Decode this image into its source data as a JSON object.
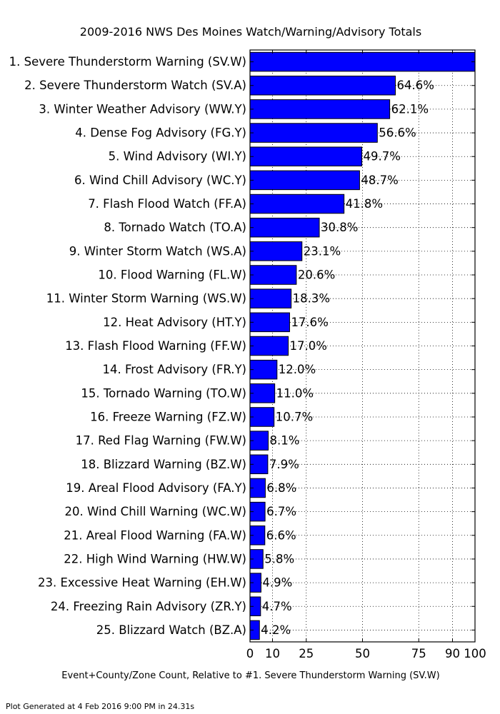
{
  "chart_data": {
    "type": "bar",
    "orientation": "horizontal",
    "title": "2009-2016 NWS Des Moines Watch/Warning/Advisory Totals",
    "xlabel": "Event+County/Zone Count, Relative to #1. Severe Thunderstorm Warning (SV.W)",
    "ylabel": "",
    "xlim": [
      0,
      100
    ],
    "xticks": [
      0,
      10,
      25,
      50,
      75,
      90,
      100
    ],
    "grid": true,
    "bar_color": "#0000ff",
    "categories": [
      "1. Severe Thunderstorm Warning (SV.W)",
      "2. Severe Thunderstorm Watch (SV.A)",
      "3. Winter Weather Advisory (WW.Y)",
      "4. Dense Fog Advisory (FG.Y)",
      "5. Wind Advisory (WI.Y)",
      "6. Wind Chill Advisory (WC.Y)",
      "7. Flash Flood Watch (FF.A)",
      "8. Tornado Watch (TO.A)",
      "9. Winter Storm Watch (WS.A)",
      "10. Flood Warning (FL.W)",
      "11. Winter Storm Warning (WS.W)",
      "12. Heat Advisory (HT.Y)",
      "13. Flash Flood Warning (FF.W)",
      "14. Frost Advisory (FR.Y)",
      "15. Tornado Warning (TO.W)",
      "16. Freeze Warning (FZ.W)",
      "17. Red Flag Warning (FW.W)",
      "18. Blizzard Warning (BZ.W)",
      "19. Areal Flood Advisory (FA.Y)",
      "20. Wind Chill Warning (WC.W)",
      "21. Areal Flood Warning (FA.W)",
      "22. High Wind Warning (HW.W)",
      "23. Excessive Heat Warning (EH.W)",
      "24. Freezing Rain Advisory (ZR.Y)",
      "25. Blizzard Watch (BZ.A)"
    ],
    "values": [
      100,
      64.6,
      62.1,
      56.6,
      49.7,
      48.7,
      41.8,
      30.8,
      23.1,
      20.6,
      18.3,
      17.6,
      17.0,
      12.0,
      11.0,
      10.7,
      8.1,
      7.9,
      6.8,
      6.7,
      6.6,
      5.8,
      4.9,
      4.7,
      4.2
    ],
    "value_labels": [
      "",
      "64.6%",
      "62.1%",
      "56.6%",
      "49.7%",
      "48.7%",
      "41.8%",
      "30.8%",
      "23.1%",
      "20.6%",
      "18.3%",
      "17.6%",
      "17.0%",
      "12.0%",
      "11.0%",
      "10.7%",
      "8.1%",
      "7.9%",
      "6.8%",
      "6.7%",
      "6.6%",
      "5.8%",
      "4.9%",
      "4.7%",
      "4.2%"
    ]
  },
  "footer": "Plot Generated at 4 Feb 2016 9:00 PM in 24.31s"
}
